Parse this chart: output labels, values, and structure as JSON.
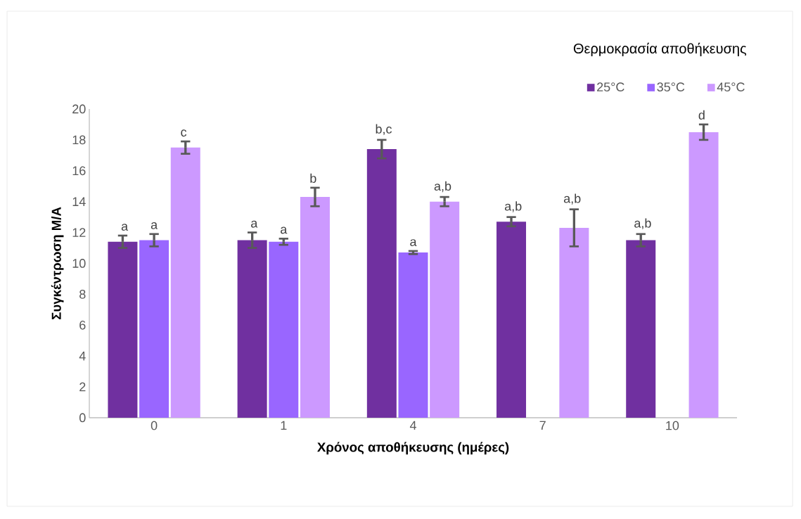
{
  "chart_data": {
    "type": "bar",
    "xlabel": "Χρόνος αποθήκευσης (ημέρες)",
    "ylabel": "Συγκέντρωση Μ/Α",
    "legend_title": "Θερμοκρασία αποθήκευσης",
    "legend": "top right",
    "categories": [
      "0",
      "1",
      "4",
      "7",
      "10"
    ],
    "ylim": [
      0,
      20
    ],
    "yticks": [
      0,
      2,
      4,
      6,
      8,
      10,
      12,
      14,
      16,
      18,
      20
    ],
    "series": [
      {
        "name": "25°C",
        "color": "#7030a0",
        "values": [
          11.4,
          11.5,
          17.4,
          12.7,
          11.5
        ],
        "errors": [
          0.4,
          0.5,
          0.6,
          0.3,
          0.4
        ],
        "value_labels": [
          "a",
          "a",
          "b,c",
          "a,b",
          "a,b"
        ]
      },
      {
        "name": "35°C",
        "color": "#9966ff",
        "values": [
          11.5,
          11.4,
          10.7,
          null,
          null
        ],
        "errors": [
          0.4,
          0.2,
          0.1,
          null,
          null
        ],
        "value_labels": [
          "a",
          "a",
          "a",
          null,
          null
        ]
      },
      {
        "name": "45°C",
        "color": "#cc99ff",
        "values": [
          17.5,
          14.3,
          14.0,
          12.3,
          18.5
        ],
        "errors": [
          0.4,
          0.6,
          0.3,
          1.2,
          0.5
        ],
        "value_labels": [
          "c",
          "b",
          "a,b",
          "a,b",
          "d"
        ]
      }
    ]
  }
}
